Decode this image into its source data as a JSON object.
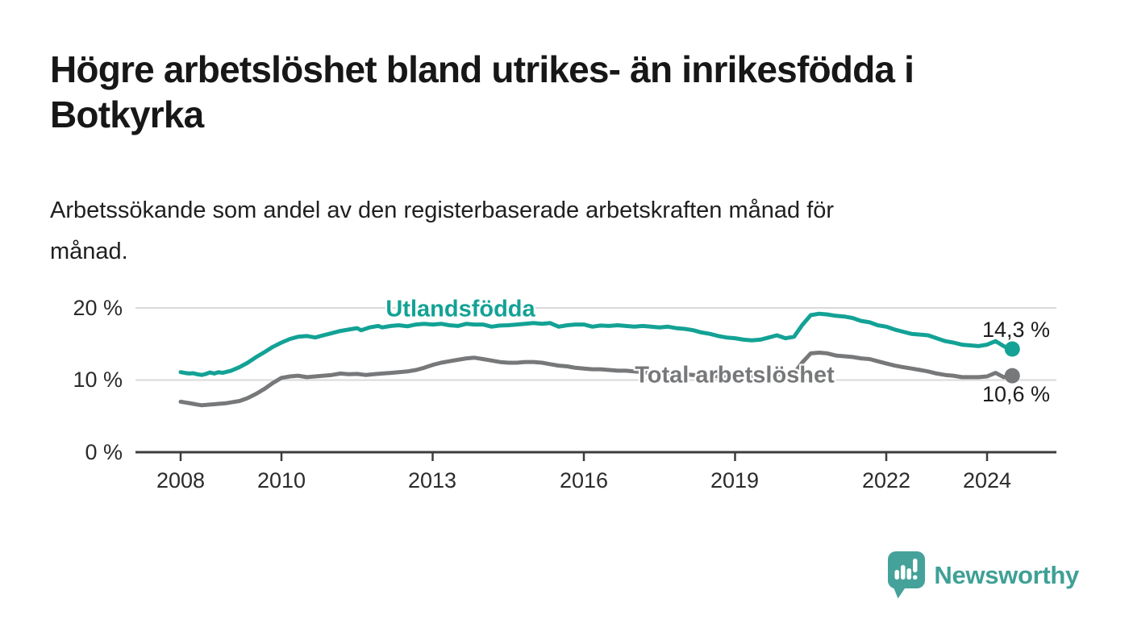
{
  "page": {
    "title_lines": [
      "Högre arbetslöshet bland utrikes- än inrikesfödda i",
      "Botkyrka"
    ],
    "subtitle_lines": [
      "Arbetssökande som andel av den registerbaserade arbetskraften månad för",
      "månad."
    ]
  },
  "branding": {
    "logo_text": "Newsworthy",
    "logo_icon": "newsworthy-speech-bubble-bar-chart-icon",
    "logo_color": "#45a29a"
  },
  "chart_data": {
    "type": "line",
    "title": "Högre arbetslöshet bland utrikes- än inrikesfödda i Botkyrka",
    "subtitle": "Arbetssökande som andel av den registerbaserade arbetskraften månad för månad.",
    "xlabel": "",
    "ylabel": "",
    "unit": "%",
    "grid": "horizontal-only",
    "legend_position": "inline-labels",
    "xlim": [
      2007.1,
      2025.4
    ],
    "ylim": [
      0,
      22.4
    ],
    "y_ticks": [
      {
        "value": 0,
        "label": "0 %"
      },
      {
        "value": 10,
        "label": "10 %"
      },
      {
        "value": 20,
        "label": "20 %"
      }
    ],
    "x_ticks": [
      {
        "value": 2008,
        "label": "2008"
      },
      {
        "value": 2010,
        "label": "2010"
      },
      {
        "value": 2013,
        "label": "2013"
      },
      {
        "value": 2016,
        "label": "2016"
      },
      {
        "value": 2019,
        "label": "2019"
      },
      {
        "value": 2022,
        "label": "2022"
      },
      {
        "value": 2024,
        "label": "2024"
      }
    ],
    "colors": {
      "grid": "#d9d9d9",
      "axis": "#3c3c3c",
      "tick_text": "#2b2b2b",
      "value_text": "#1c1c1c"
    },
    "series": [
      {
        "name": "Utlandsfödda",
        "color": "#13a295",
        "end_value": 14.3,
        "end_label": "14,3 %",
        "end_dot": true,
        "points": [
          [
            2008.0,
            11.1
          ],
          [
            2008.08,
            11.0
          ],
          [
            2008.17,
            10.9
          ],
          [
            2008.25,
            10.95
          ],
          [
            2008.33,
            10.8
          ],
          [
            2008.42,
            10.7
          ],
          [
            2008.5,
            10.85
          ],
          [
            2008.58,
            11.05
          ],
          [
            2008.67,
            10.9
          ],
          [
            2008.75,
            11.1
          ],
          [
            2008.83,
            11.0
          ],
          [
            2008.92,
            11.15
          ],
          [
            2009.0,
            11.3
          ],
          [
            2009.17,
            11.8
          ],
          [
            2009.33,
            12.4
          ],
          [
            2009.5,
            13.2
          ],
          [
            2009.67,
            13.9
          ],
          [
            2009.83,
            14.6
          ],
          [
            2010.0,
            15.2
          ],
          [
            2010.17,
            15.7
          ],
          [
            2010.33,
            16.0
          ],
          [
            2010.5,
            16.1
          ],
          [
            2010.67,
            15.9
          ],
          [
            2010.83,
            16.2
          ],
          [
            2011.0,
            16.5
          ],
          [
            2011.17,
            16.8
          ],
          [
            2011.33,
            17.0
          ],
          [
            2011.5,
            17.2
          ],
          [
            2011.58,
            16.9
          ],
          [
            2011.75,
            17.3
          ],
          [
            2011.92,
            17.5
          ],
          [
            2012.0,
            17.3
          ],
          [
            2012.17,
            17.5
          ],
          [
            2012.33,
            17.6
          ],
          [
            2012.5,
            17.45
          ],
          [
            2012.67,
            17.7
          ],
          [
            2012.83,
            17.8
          ],
          [
            2013.0,
            17.7
          ],
          [
            2013.17,
            17.8
          ],
          [
            2013.33,
            17.6
          ],
          [
            2013.5,
            17.5
          ],
          [
            2013.67,
            17.8
          ],
          [
            2013.83,
            17.7
          ],
          [
            2014.0,
            17.7
          ],
          [
            2014.17,
            17.4
          ],
          [
            2014.33,
            17.55
          ],
          [
            2014.5,
            17.6
          ],
          [
            2014.67,
            17.7
          ],
          [
            2014.83,
            17.8
          ],
          [
            2015.0,
            17.9
          ],
          [
            2015.17,
            17.8
          ],
          [
            2015.33,
            17.9
          ],
          [
            2015.5,
            17.4
          ],
          [
            2015.67,
            17.6
          ],
          [
            2015.83,
            17.7
          ],
          [
            2016.0,
            17.7
          ],
          [
            2016.17,
            17.4
          ],
          [
            2016.33,
            17.55
          ],
          [
            2016.5,
            17.5
          ],
          [
            2016.67,
            17.6
          ],
          [
            2016.83,
            17.5
          ],
          [
            2017.0,
            17.4
          ],
          [
            2017.17,
            17.5
          ],
          [
            2017.33,
            17.4
          ],
          [
            2017.5,
            17.3
          ],
          [
            2017.67,
            17.4
          ],
          [
            2017.83,
            17.2
          ],
          [
            2018.0,
            17.1
          ],
          [
            2018.17,
            16.9
          ],
          [
            2018.33,
            16.6
          ],
          [
            2018.5,
            16.4
          ],
          [
            2018.67,
            16.1
          ],
          [
            2018.83,
            15.9
          ],
          [
            2019.0,
            15.8
          ],
          [
            2019.17,
            15.6
          ],
          [
            2019.33,
            15.5
          ],
          [
            2019.5,
            15.6
          ],
          [
            2019.67,
            15.9
          ],
          [
            2019.83,
            16.2
          ],
          [
            2020.0,
            15.8
          ],
          [
            2020.17,
            16.0
          ],
          [
            2020.33,
            17.6
          ],
          [
            2020.5,
            19.0
          ],
          [
            2020.67,
            19.2
          ],
          [
            2020.83,
            19.1
          ],
          [
            2021.0,
            18.9
          ],
          [
            2021.17,
            18.8
          ],
          [
            2021.33,
            18.6
          ],
          [
            2021.5,
            18.2
          ],
          [
            2021.67,
            18.0
          ],
          [
            2021.83,
            17.6
          ],
          [
            2022.0,
            17.4
          ],
          [
            2022.17,
            17.0
          ],
          [
            2022.33,
            16.7
          ],
          [
            2022.5,
            16.4
          ],
          [
            2022.67,
            16.3
          ],
          [
            2022.83,
            16.2
          ],
          [
            2023.0,
            15.8
          ],
          [
            2023.17,
            15.4
          ],
          [
            2023.33,
            15.2
          ],
          [
            2023.5,
            14.9
          ],
          [
            2023.67,
            14.8
          ],
          [
            2023.83,
            14.7
          ],
          [
            2024.0,
            14.9
          ],
          [
            2024.17,
            15.4
          ],
          [
            2024.33,
            14.7
          ],
          [
            2024.42,
            14.4
          ],
          [
            2024.5,
            14.3
          ]
        ]
      },
      {
        "name": "Total arbetslöshet",
        "color": "#77787a",
        "end_value": 10.6,
        "end_label": "10,6 %",
        "end_dot": true,
        "points": [
          [
            2008.0,
            7.0
          ],
          [
            2008.08,
            6.9
          ],
          [
            2008.17,
            6.8
          ],
          [
            2008.25,
            6.7
          ],
          [
            2008.33,
            6.6
          ],
          [
            2008.42,
            6.5
          ],
          [
            2008.5,
            6.55
          ],
          [
            2008.58,
            6.6
          ],
          [
            2008.67,
            6.65
          ],
          [
            2008.75,
            6.7
          ],
          [
            2008.83,
            6.75
          ],
          [
            2008.92,
            6.8
          ],
          [
            2009.0,
            6.9
          ],
          [
            2009.17,
            7.1
          ],
          [
            2009.33,
            7.5
          ],
          [
            2009.5,
            8.1
          ],
          [
            2009.67,
            8.8
          ],
          [
            2009.83,
            9.6
          ],
          [
            2010.0,
            10.3
          ],
          [
            2010.17,
            10.5
          ],
          [
            2010.33,
            10.6
          ],
          [
            2010.5,
            10.4
          ],
          [
            2010.67,
            10.5
          ],
          [
            2010.83,
            10.6
          ],
          [
            2011.0,
            10.7
          ],
          [
            2011.17,
            10.9
          ],
          [
            2011.33,
            10.8
          ],
          [
            2011.5,
            10.85
          ],
          [
            2011.67,
            10.7
          ],
          [
            2011.83,
            10.8
          ],
          [
            2012.0,
            10.9
          ],
          [
            2012.17,
            11.0
          ],
          [
            2012.33,
            11.1
          ],
          [
            2012.5,
            11.2
          ],
          [
            2012.67,
            11.4
          ],
          [
            2012.83,
            11.7
          ],
          [
            2013.0,
            12.1
          ],
          [
            2013.17,
            12.4
          ],
          [
            2013.33,
            12.6
          ],
          [
            2013.5,
            12.8
          ],
          [
            2013.67,
            13.0
          ],
          [
            2013.83,
            13.1
          ],
          [
            2014.0,
            12.9
          ],
          [
            2014.17,
            12.7
          ],
          [
            2014.33,
            12.5
          ],
          [
            2014.5,
            12.4
          ],
          [
            2014.67,
            12.4
          ],
          [
            2014.83,
            12.5
          ],
          [
            2015.0,
            12.5
          ],
          [
            2015.17,
            12.4
          ],
          [
            2015.33,
            12.2
          ],
          [
            2015.5,
            12.0
          ],
          [
            2015.67,
            11.9
          ],
          [
            2015.83,
            11.7
          ],
          [
            2016.0,
            11.6
          ],
          [
            2016.17,
            11.5
          ],
          [
            2016.33,
            11.5
          ],
          [
            2016.5,
            11.4
          ],
          [
            2016.67,
            11.3
          ],
          [
            2016.83,
            11.3
          ],
          [
            2017.0,
            11.2
          ],
          [
            2017.17,
            11.1
          ],
          [
            2017.33,
            11.0
          ],
          [
            2017.5,
            11.0
          ],
          [
            2017.67,
            10.9
          ],
          [
            2017.83,
            10.8
          ],
          [
            2018.0,
            10.8
          ],
          [
            2018.17,
            10.7
          ],
          [
            2018.33,
            10.6
          ],
          [
            2018.5,
            10.6
          ],
          [
            2018.67,
            10.5
          ],
          [
            2018.83,
            10.4
          ],
          [
            2019.0,
            10.4
          ],
          [
            2019.17,
            10.4
          ],
          [
            2019.33,
            10.45
          ],
          [
            2019.5,
            10.5
          ],
          [
            2019.67,
            10.7
          ],
          [
            2019.83,
            10.8
          ],
          [
            2020.0,
            10.7
          ],
          [
            2020.17,
            10.9
          ],
          [
            2020.33,
            12.4
          ],
          [
            2020.5,
            13.7
          ],
          [
            2020.67,
            13.8
          ],
          [
            2020.83,
            13.7
          ],
          [
            2021.0,
            13.4
          ],
          [
            2021.17,
            13.3
          ],
          [
            2021.33,
            13.2
          ],
          [
            2021.5,
            13.0
          ],
          [
            2021.67,
            12.9
          ],
          [
            2021.83,
            12.6
          ],
          [
            2022.0,
            12.3
          ],
          [
            2022.17,
            12.0
          ],
          [
            2022.33,
            11.8
          ],
          [
            2022.5,
            11.6
          ],
          [
            2022.67,
            11.4
          ],
          [
            2022.83,
            11.2
          ],
          [
            2023.0,
            10.9
          ],
          [
            2023.17,
            10.7
          ],
          [
            2023.33,
            10.6
          ],
          [
            2023.5,
            10.4
          ],
          [
            2023.67,
            10.4
          ],
          [
            2023.83,
            10.4
          ],
          [
            2024.0,
            10.5
          ],
          [
            2024.17,
            11.0
          ],
          [
            2024.33,
            10.4
          ],
          [
            2024.42,
            10.5
          ],
          [
            2024.5,
            10.6
          ]
        ]
      }
    ]
  }
}
